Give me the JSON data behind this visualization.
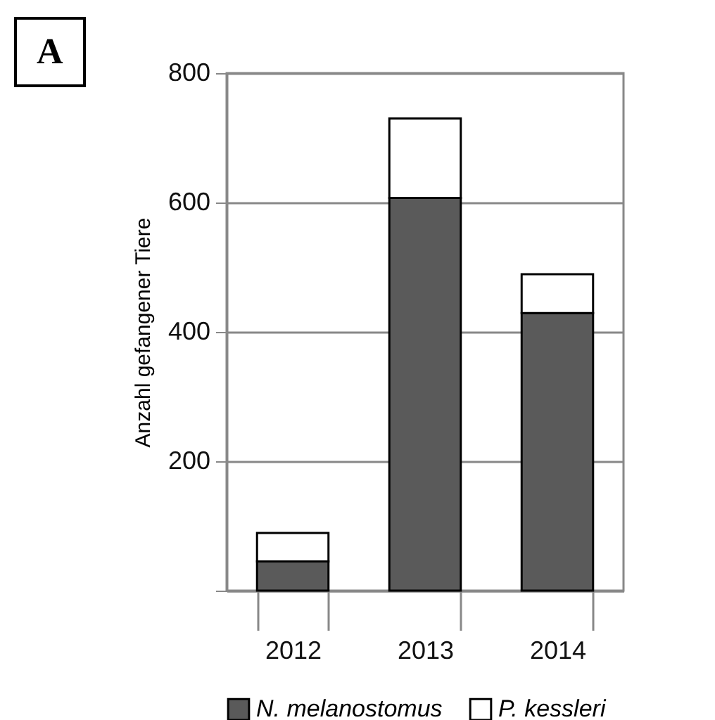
{
  "chart_data": {
    "type": "bar",
    "ylabel": "Anzahl gefangener Tiere",
    "annotations": [
      "A"
    ],
    "categories": [
      "2012",
      "2013",
      "2014"
    ],
    "series": [
      {
        "name": "N. melanostomus",
        "color": "#5a5a5a",
        "values": [
          45,
          607,
          429
        ]
      },
      {
        "name": "P. kessleri",
        "color": "#ffffff",
        "values": [
          44,
          123,
          60
        ]
      }
    ],
    "stacked": true,
    "ylim": [
      0,
      800
    ],
    "yticks": [
      {
        "value": 0,
        "label": null
      },
      200,
      400,
      600,
      800
    ],
    "grid": "y",
    "legend": "bottom"
  }
}
